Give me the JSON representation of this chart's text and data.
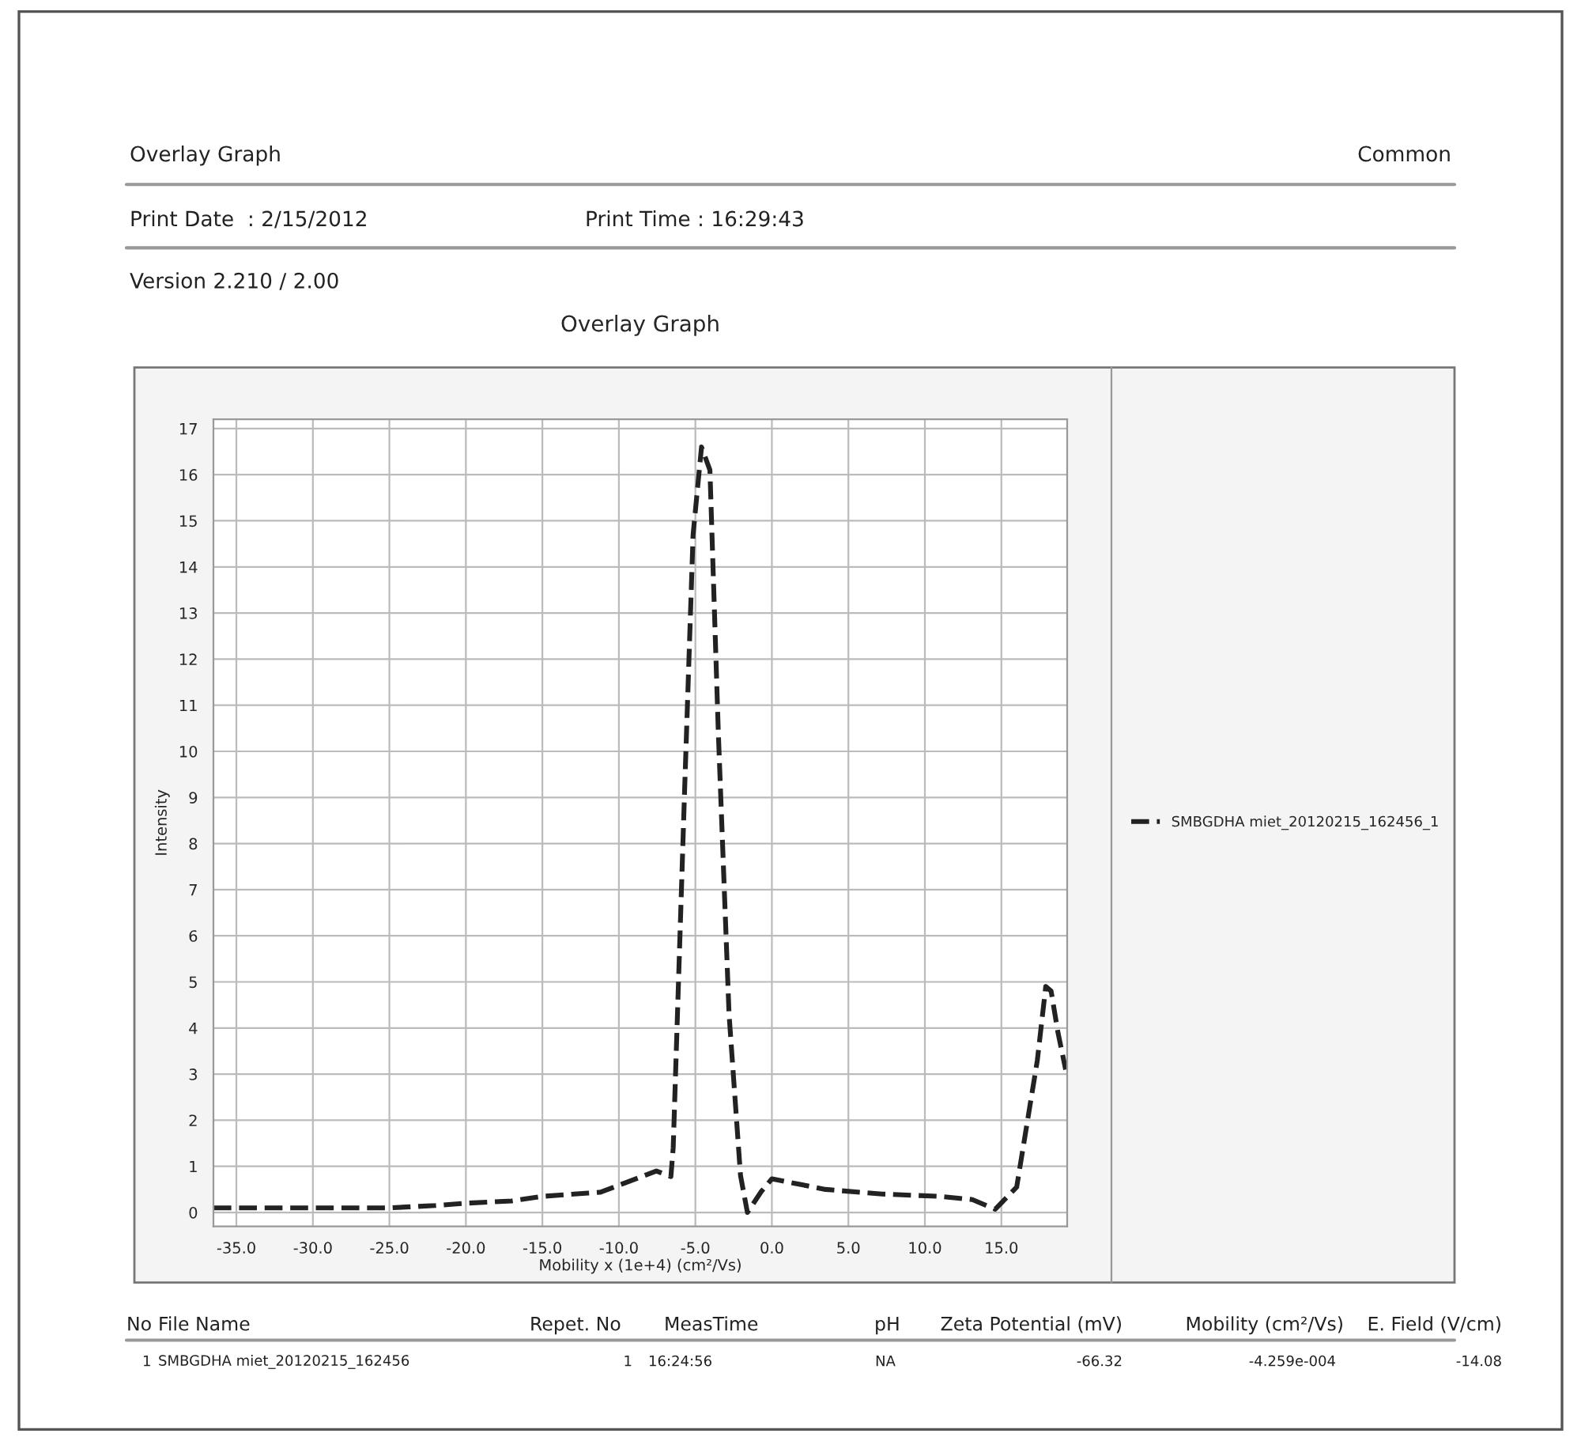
{
  "chart_data": {
    "type": "line",
    "title": "Overlay Graph",
    "xlabel": "Mobility x (1e+4) (cm²/Vs)",
    "ylabel": "Intensity",
    "x": [
      -36.5,
      -30,
      -25,
      -22,
      -20,
      -17,
      -15,
      -12,
      -11.2,
      -7.55,
      -6.6,
      -6.45,
      -5.7,
      -5.15,
      -4.6,
      -4.05,
      -3.5,
      -2.8,
      -2.05,
      -1.6,
      -0.7,
      0.0,
      3.5,
      7.2,
      10.9,
      13.1,
      14.6,
      16.0,
      17.35,
      17.9,
      18.25,
      18.7,
      19.2
    ],
    "series": [
      {
        "name": "SMBGDHA miet_20120215_162456_1",
        "color": "#222222",
        "values": [
          0.1,
          0.1,
          0.1,
          0.15,
          0.2,
          0.25,
          0.35,
          0.42,
          0.44,
          0.9,
          0.78,
          1.4,
          9.2,
          14.7,
          16.6,
          16.1,
          10.4,
          4.3,
          0.8,
          0.0,
          0.45,
          0.73,
          0.5,
          0.4,
          0.35,
          0.28,
          0.07,
          0.55,
          3.3,
          4.9,
          4.8,
          3.9,
          3.1
        ]
      }
    ],
    "xlim": [
      -36.5,
      19.3
    ],
    "ylim": [
      -0.3,
      17.2
    ],
    "xticks": [
      {
        "value": -35,
        "label": "-35.0"
      },
      {
        "value": -30,
        "label": "-30.0"
      },
      {
        "value": -25,
        "label": "-25.0"
      },
      {
        "value": -20,
        "label": "-20.0"
      },
      {
        "value": -15,
        "label": "-15.0"
      },
      {
        "value": -10,
        "label": "-10.0"
      },
      {
        "value": -5,
        "label": "-5.0"
      },
      {
        "value": 0,
        "label": "0.0"
      },
      {
        "value": 5,
        "label": "5.0"
      },
      {
        "value": 10,
        "label": "10.0"
      },
      {
        "value": 15,
        "label": "15.0"
      }
    ],
    "yticks": [
      0,
      1,
      2,
      3,
      4,
      5,
      6,
      7,
      8,
      9,
      10,
      11,
      12,
      13,
      14,
      15,
      16,
      17
    ],
    "grid": true,
    "legend": "right",
    "line_style": "dashed",
    "marker": "none",
    "annotations": [
      "Overlay Graph",
      "Common",
      "Print Date  : 2/15/2012",
      "Print Time : 16:29:43",
      "Version 2.210 / 2.00",
      "No",
      "File Name",
      "Repet. No",
      "MeasTime",
      "pH",
      "Zeta Potential (mV)",
      "Mobility (cm²/Vs)",
      "E. Field (V/cm)",
      "1",
      "SMBGDHA miet_20120215_162456",
      "1",
      "16:24:56",
      "NA",
      "-66.32",
      "-4.259e-004",
      "-14.08"
    ]
  }
}
